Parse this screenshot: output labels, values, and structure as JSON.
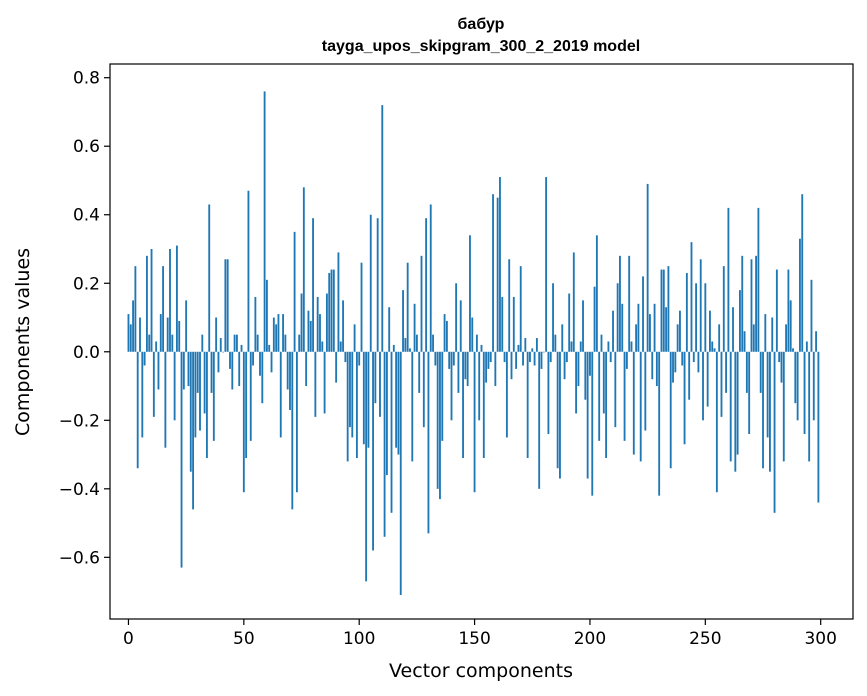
{
  "chart_data": {
    "type": "bar",
    "title": "бабур",
    "subtitle": "tayga_upos_skipgram_300_2_2019 model",
    "xlabel": "Vector components",
    "ylabel": "Components values",
    "xlim": [
      -8,
      314
    ],
    "ylim": [
      -0.78,
      0.84
    ],
    "xticks": [
      0,
      50,
      100,
      150,
      200,
      250,
      300
    ],
    "yticks": [
      -0.6,
      -0.4,
      -0.2,
      0.0,
      0.2,
      0.4,
      0.6,
      0.8
    ],
    "ytick_labels": [
      "−0.6",
      "−0.4",
      "−0.2",
      "0.0",
      "0.2",
      "0.4",
      "0.6",
      "0.8"
    ],
    "bar_color": "#1f77b4",
    "grid": false,
    "values": [
      0.11,
      0.08,
      0.15,
      0.25,
      -0.34,
      0.1,
      -0.25,
      -0.04,
      0.28,
      0.05,
      0.3,
      -0.19,
      0.03,
      -0.11,
      0.11,
      0.25,
      -0.28,
      0.1,
      0.3,
      0.05,
      -0.2,
      0.31,
      0.09,
      -0.63,
      -0.11,
      0.15,
      -0.1,
      -0.35,
      -0.46,
      -0.25,
      -0.12,
      -0.23,
      0.05,
      -0.18,
      -0.31,
      0.43,
      -0.12,
      -0.26,
      0.1,
      -0.06,
      0.04,
      0.0,
      0.27,
      0.27,
      -0.05,
      -0.11,
      0.05,
      0.05,
      -0.1,
      0.02,
      -0.41,
      -0.31,
      0.47,
      -0.26,
      -0.04,
      0.16,
      0.05,
      -0.07,
      -0.15,
      0.76,
      0.21,
      0.02,
      -0.06,
      0.1,
      0.08,
      0.11,
      -0.25,
      0.11,
      0.05,
      -0.11,
      -0.17,
      -0.46,
      0.35,
      -0.41,
      0.05,
      0.17,
      0.48,
      -0.1,
      0.12,
      0.09,
      0.39,
      -0.19,
      0.16,
      0.11,
      0.03,
      -0.18,
      0.17,
      0.23,
      0.24,
      0.24,
      -0.09,
      0.29,
      0.03,
      0.15,
      -0.03,
      -0.32,
      -0.22,
      -0.25,
      0.08,
      -0.31,
      -0.04,
      0.26,
      -0.27,
      -0.67,
      -0.28,
      0.4,
      -0.58,
      -0.15,
      0.39,
      -0.19,
      0.72,
      -0.54,
      -0.36,
      0.13,
      -0.47,
      0.02,
      -0.28,
      -0.3,
      -0.71,
      0.18,
      0.04,
      0.26,
      0.01,
      -0.32,
      0.14,
      0.05,
      -0.12,
      0.28,
      -0.22,
      0.39,
      -0.53,
      0.43,
      0.05,
      -0.04,
      -0.4,
      -0.43,
      -0.26,
      0.11,
      0.09,
      -0.05,
      -0.2,
      -0.04,
      0.2,
      -0.12,
      0.15,
      -0.31,
      -0.08,
      -0.1,
      0.34,
      0.1,
      -0.41,
      0.05,
      -0.2,
      0.02,
      -0.31,
      -0.09,
      -0.05,
      -0.03,
      0.46,
      -0.1,
      0.45,
      0.51,
      0.16,
      -0.03,
      -0.25,
      0.27,
      -0.08,
      0.16,
      -0.05,
      0.02,
      0.25,
      -0.04,
      0.04,
      -0.31,
      -0.03,
      0.01,
      -0.04,
      0.04,
      -0.4,
      -0.05,
      0.0,
      0.51,
      -0.24,
      -0.03,
      0.2,
      0.05,
      -0.34,
      -0.37,
      0.08,
      -0.08,
      -0.03,
      0.17,
      0.03,
      0.29,
      -0.18,
      -0.1,
      0.03,
      0.15,
      -0.14,
      -0.37,
      -0.07,
      -0.42,
      0.19,
      0.34,
      -0.26,
      0.05,
      -0.18,
      -0.31,
      0.03,
      -0.03,
      0.12,
      -0.22,
      0.2,
      0.28,
      0.14,
      -0.26,
      -0.05,
      0.28,
      0.03,
      -0.3,
      0.08,
      0.14,
      -0.32,
      0.22,
      -0.23,
      0.49,
      0.11,
      -0.08,
      0.14,
      -0.1,
      -0.42,
      0.24,
      0.24,
      0.13,
      0.25,
      -0.34,
      -0.09,
      -0.06,
      0.08,
      0.12,
      -0.04,
      -0.27,
      0.23,
      -0.14,
      0.32,
      -0.03,
      0.2,
      -0.06,
      0.27,
      -0.2,
      0.2,
      -0.16,
      0.12,
      0.03,
      0.01,
      -0.41,
      0.08,
      -0.19,
      0.25,
      -0.12,
      0.42,
      -0.32,
      0.13,
      -0.35,
      -0.3,
      0.18,
      0.28,
      0.06,
      -0.12,
      -0.24,
      0.27,
      0.08,
      0.28,
      0.42,
      -0.12,
      -0.34,
      0.11,
      -0.25,
      -0.35,
      0.1,
      -0.47,
      0.24,
      -0.03,
      -0.09,
      -0.32,
      0.08,
      0.24,
      0.15,
      0.01,
      -0.15,
      -0.2,
      0.33,
      0.46,
      -0.24,
      0.03,
      -0.32,
      0.21,
      -0.2,
      0.06,
      -0.44
    ]
  }
}
